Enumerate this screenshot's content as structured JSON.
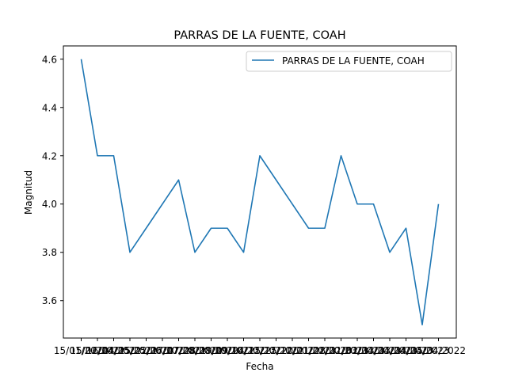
{
  "chart_data": {
    "type": "line",
    "title": "PARRAS DE LA FUENTE, COAH",
    "xlabel": "Fecha",
    "ylabel": "Magnitud",
    "x": [
      "15/01/2022",
      "15/02/2022",
      "16/04/2022",
      "04/05/2022",
      "15/05/2022",
      "22/06/2022",
      "17/07/2022",
      "07/08/2022",
      "28/08/2022",
      "19/09/2022",
      "09/10/2022",
      "04/12/2022",
      "15/12/2022",
      "25/12/2022",
      "20/01/2023",
      "21/02/2023",
      "28/02/2023",
      "21/03/2023",
      "02/04/2023",
      "13/04/2023",
      "23/04/2023",
      "24/04/2023",
      "25/04/2022"
    ],
    "y": [
      4.6,
      4.2,
      4.2,
      3.8,
      3.9,
      4.0,
      4.1,
      3.8,
      3.9,
      3.9,
      3.8,
      4.2,
      4.1,
      4.0,
      3.9,
      3.9,
      4.2,
      4.0,
      4.0,
      3.8,
      3.9,
      3.5,
      4.0
    ],
    "ylim": [
      3.445,
      4.655
    ],
    "yticks": [
      "3.6",
      "3.8",
      "4.0",
      "4.2",
      "4.4",
      "4.6"
    ],
    "legend": {
      "position": "top-right",
      "entries": [
        "PARRAS DE LA FUENTE, COAH"
      ]
    },
    "grid": false,
    "series_color": "#1f77b4"
  }
}
